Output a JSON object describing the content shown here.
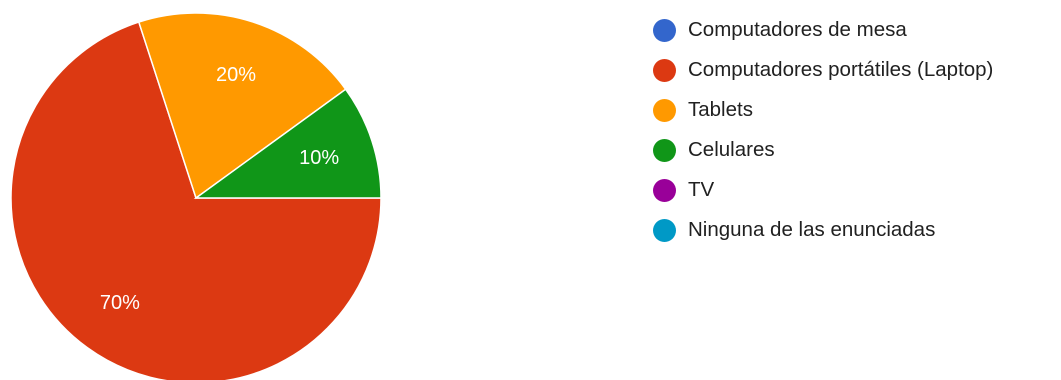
{
  "chart_data": {
    "type": "pie",
    "legend_position": "right",
    "slices": [
      {
        "label": "Computadores de mesa",
        "value": 0,
        "color": "#3366cc",
        "display": ""
      },
      {
        "label": "Computadores portátiles (Laptop)",
        "value": 70,
        "color": "#dc3912",
        "display": "70%"
      },
      {
        "label": "Tablets",
        "value": 20,
        "color": "#ff9900",
        "display": "20%"
      },
      {
        "label": "Celulares",
        "value": 10,
        "color": "#109618",
        "display": "10%"
      },
      {
        "label": "TV",
        "value": 0,
        "color": "#990099",
        "display": ""
      },
      {
        "label": "Ninguna de las enunciadas",
        "value": 0,
        "color": "#0099c6",
        "display": ""
      }
    ]
  }
}
